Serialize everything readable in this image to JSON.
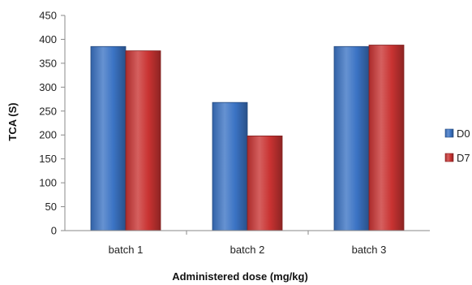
{
  "chart_data": {
    "type": "bar",
    "title": "",
    "xlabel": "Administered dose (mg/kg)",
    "ylabel": "TCA (S)",
    "categories": [
      "batch 1",
      "batch 2",
      "batch 3"
    ],
    "series": [
      {
        "name": "D0",
        "values": [
          385,
          268,
          385
        ],
        "color": "#3b73c4"
      },
      {
        "name": "D7",
        "values": [
          376,
          198,
          388
        ],
        "color": "#c93332"
      }
    ],
    "ylim": [
      0,
      450
    ],
    "yticks": [
      0,
      50,
      100,
      150,
      200,
      250,
      300,
      350,
      400,
      450
    ],
    "grid": false,
    "legend": "right"
  }
}
